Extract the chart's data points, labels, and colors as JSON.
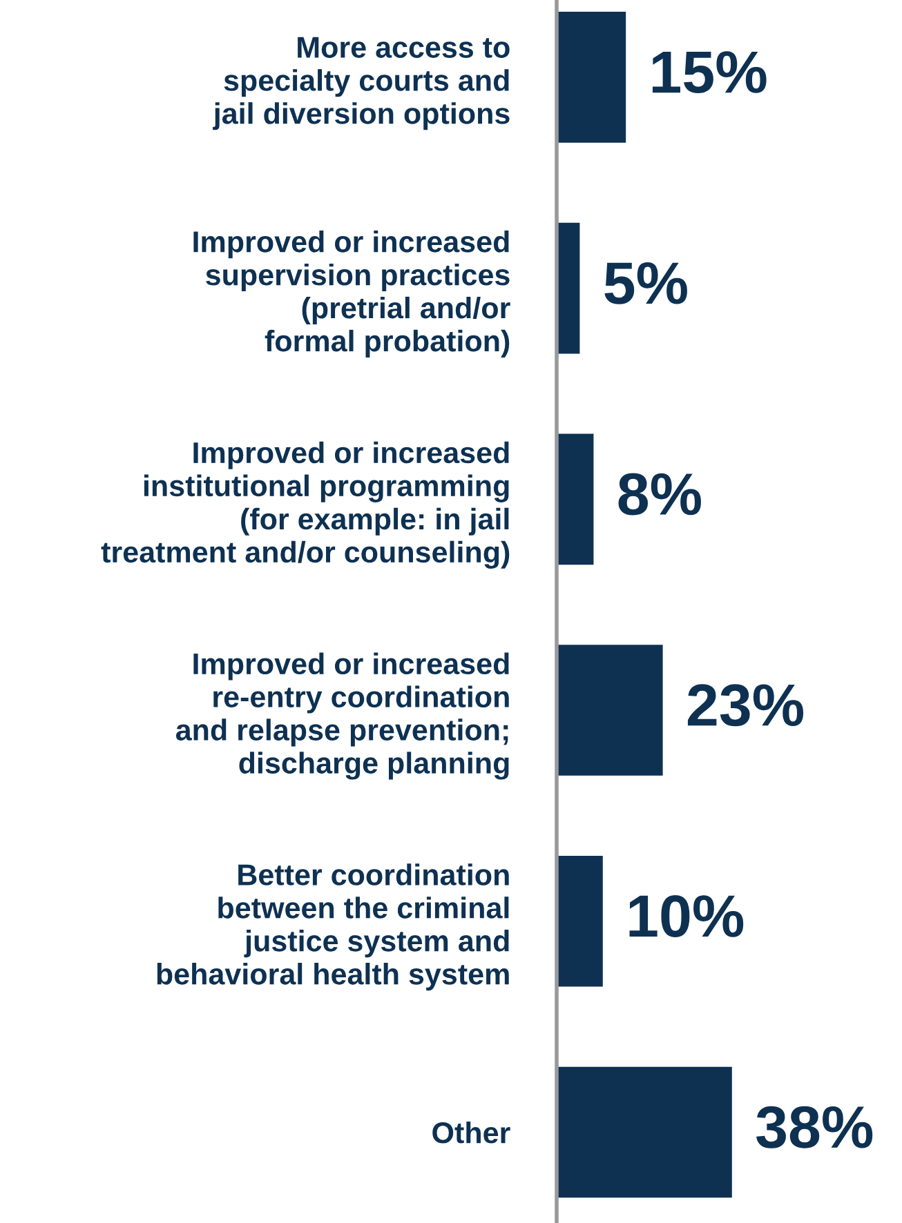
{
  "chart_data": {
    "type": "bar",
    "orientation": "horizontal",
    "categories": [
      "More access to\nspecialty courts and\njail diversion options",
      "Improved or increased\nsupervision practices\n(pretrial and/or\nformal probation)",
      "Improved or increased\ninstitutional programming\n(for example: in jail\ntreatment and/or counseling)",
      "Improved or increased\nre-entry coordination\nand relapse prevention;\ndischarge planning",
      "Better coordination\nbetween the criminal\njustice system and\nbehavioral health system",
      "Other"
    ],
    "values": [
      15,
      5,
      8,
      23,
      10,
      38
    ],
    "value_labels": [
      "15%",
      "5%",
      "8%",
      "23%",
      "10%",
      "38%"
    ],
    "color": "#0e3152",
    "tick_labels": "y",
    "grid": false,
    "legend": false
  }
}
